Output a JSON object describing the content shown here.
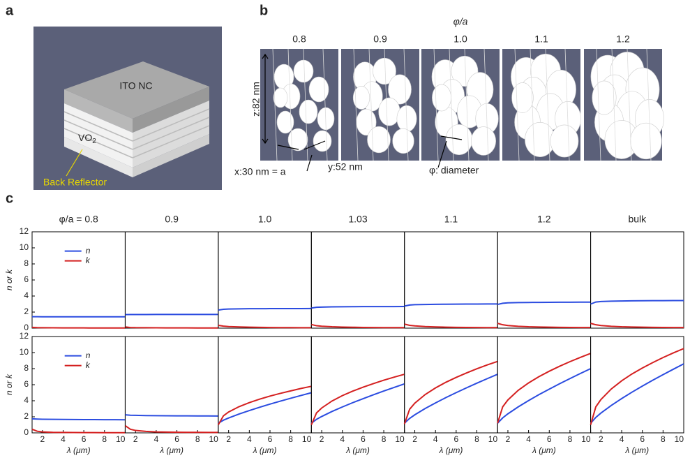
{
  "panel_a": {
    "label": "a",
    "top_layer": "ITO NC",
    "middle_layer": "VO",
    "middle_layer_sub": "2",
    "bottom_layer": "Back Reflector"
  },
  "panel_b": {
    "label": "b",
    "parameter": "φ/a",
    "columns": [
      "0.8",
      "0.9",
      "1.0",
      "1.1",
      "1.2"
    ],
    "z_size": "z:82 nm",
    "x_size": "x:30 nm = a",
    "y_size": "y:52 nm",
    "diameter": "φ: diameter"
  },
  "panel_c": {
    "label": "c"
  },
  "chart_data": [
    {
      "type": "line",
      "title": "φ/a = 0.8",
      "ylabel": "n or k",
      "legend": "upper center",
      "x": [
        1,
        1.5,
        2,
        3,
        4,
        5,
        6,
        7,
        8,
        9,
        10
      ],
      "xlim": [
        1,
        10
      ],
      "ylim": [
        0,
        12
      ],
      "yticks": [
        0,
        2,
        4,
        6,
        8,
        10,
        12
      ],
      "series": [
        {
          "name": "n",
          "color": "#2b4ce0",
          "values": [
            1.42,
            1.42,
            1.41,
            1.41,
            1.41,
            1.41,
            1.41,
            1.41,
            1.41,
            1.41,
            1.41
          ]
        },
        {
          "name": "k",
          "color": "#d42020",
          "values": [
            0.1,
            0.06,
            0.05,
            0.04,
            0.03,
            0.03,
            0.03,
            0.02,
            0.02,
            0.02,
            0.02
          ]
        }
      ]
    },
    {
      "type": "line",
      "title": "0.9",
      "x": [
        1,
        1.5,
        2,
        3,
        4,
        5,
        6,
        7,
        8,
        9,
        10
      ],
      "xlim": [
        1,
        10
      ],
      "ylim": [
        0,
        12
      ],
      "series": [
        {
          "color": "#2b4ce0",
          "values": [
            1.68,
            1.7,
            1.7,
            1.7,
            1.71,
            1.71,
            1.71,
            1.71,
            1.71,
            1.71,
            1.71
          ]
        },
        {
          "color": "#d42020",
          "values": [
            0.15,
            0.08,
            0.06,
            0.05,
            0.04,
            0.03,
            0.03,
            0.03,
            0.02,
            0.02,
            0.02
          ]
        }
      ]
    },
    {
      "type": "line",
      "title": "1.0",
      "x": [
        1,
        1.5,
        2,
        3,
        4,
        5,
        6,
        7,
        8,
        9,
        10
      ],
      "xlim": [
        1,
        10
      ],
      "ylim": [
        0,
        12
      ],
      "series": [
        {
          "color": "#2b4ce0",
          "values": [
            2.25,
            2.35,
            2.38,
            2.4,
            2.42,
            2.42,
            2.43,
            2.43,
            2.44,
            2.44,
            2.45
          ]
        },
        {
          "color": "#d42020",
          "values": [
            0.35,
            0.25,
            0.2,
            0.15,
            0.12,
            0.1,
            0.08,
            0.07,
            0.06,
            0.05,
            0.05
          ]
        }
      ]
    },
    {
      "type": "line",
      "title": "1.03",
      "x": [
        1,
        1.5,
        2,
        3,
        4,
        5,
        6,
        7,
        8,
        9,
        10
      ],
      "xlim": [
        1,
        10
      ],
      "ylim": [
        0,
        12
      ],
      "series": [
        {
          "color": "#2b4ce0",
          "values": [
            2.5,
            2.6,
            2.62,
            2.65,
            2.66,
            2.67,
            2.68,
            2.68,
            2.69,
            2.69,
            2.7
          ]
        },
        {
          "color": "#d42020",
          "values": [
            0.45,
            0.3,
            0.24,
            0.17,
            0.13,
            0.11,
            0.09,
            0.08,
            0.07,
            0.06,
            0.06
          ]
        }
      ]
    },
    {
      "type": "line",
      "title": "1.1",
      "x": [
        1,
        1.5,
        2,
        3,
        4,
        5,
        6,
        7,
        8,
        9,
        10
      ],
      "xlim": [
        1,
        10
      ],
      "ylim": [
        0,
        12
      ],
      "series": [
        {
          "color": "#2b4ce0",
          "values": [
            2.75,
            2.88,
            2.92,
            2.95,
            2.97,
            2.98,
            2.99,
            3.0,
            3.0,
            3.01,
            3.01
          ]
        },
        {
          "color": "#d42020",
          "values": [
            0.5,
            0.35,
            0.28,
            0.2,
            0.15,
            0.12,
            0.1,
            0.09,
            0.08,
            0.07,
            0.07
          ]
        }
      ]
    },
    {
      "type": "line",
      "title": "1.2",
      "x": [
        1,
        1.5,
        2,
        3,
        4,
        5,
        6,
        7,
        8,
        9,
        10
      ],
      "xlim": [
        1,
        10
      ],
      "ylim": [
        0,
        12
      ],
      "series": [
        {
          "color": "#2b4ce0",
          "values": [
            2.95,
            3.1,
            3.15,
            3.18,
            3.2,
            3.21,
            3.22,
            3.23,
            3.23,
            3.24,
            3.24
          ]
        },
        {
          "color": "#d42020",
          "values": [
            0.6,
            0.42,
            0.33,
            0.23,
            0.17,
            0.14,
            0.12,
            0.1,
            0.09,
            0.08,
            0.08
          ]
        }
      ]
    },
    {
      "type": "line",
      "title": "bulk",
      "x": [
        1,
        1.5,
        2,
        3,
        4,
        5,
        6,
        7,
        8,
        9,
        10
      ],
      "xlim": [
        1,
        10
      ],
      "ylim": [
        0,
        12
      ],
      "series": [
        {
          "color": "#2b4ce0",
          "values": [
            3.0,
            3.25,
            3.32,
            3.36,
            3.38,
            3.4,
            3.41,
            3.42,
            3.42,
            3.43,
            3.43
          ]
        },
        {
          "color": "#d42020",
          "values": [
            0.6,
            0.42,
            0.33,
            0.23,
            0.17,
            0.14,
            0.12,
            0.1,
            0.09,
            0.08,
            0.08
          ]
        }
      ]
    },
    {
      "type": "line",
      "ylabel": "n or k",
      "xlabel": "λ (μm)",
      "legend": "upper center",
      "x": [
        1,
        1.5,
        2,
        3,
        4,
        5,
        6,
        7,
        8,
        9,
        10
      ],
      "xlim": [
        1,
        10
      ],
      "ylim": [
        0,
        12
      ],
      "yticks": [
        0,
        2,
        4,
        6,
        8,
        10,
        12
      ],
      "xticks": [
        2,
        4,
        6,
        8,
        10
      ],
      "series": [
        {
          "name": "n",
          "color": "#2b4ce0",
          "values": [
            1.75,
            1.72,
            1.7,
            1.68,
            1.67,
            1.66,
            1.65,
            1.65,
            1.64,
            1.64,
            1.63
          ]
        },
        {
          "name": "k",
          "color": "#d42020",
          "values": [
            0.45,
            0.2,
            0.12,
            0.07,
            0.05,
            0.04,
            0.03,
            0.03,
            0.02,
            0.02,
            0.02
          ]
        }
      ]
    },
    {
      "type": "line",
      "xlabel": "λ (μm)",
      "x": [
        1,
        1.5,
        2,
        3,
        4,
        5,
        6,
        7,
        8,
        9,
        10
      ],
      "xlim": [
        1,
        10
      ],
      "ylim": [
        0,
        12
      ],
      "xticks": [
        2,
        4,
        6,
        8,
        10
      ],
      "series": [
        {
          "color": "#2b4ce0",
          "values": [
            2.25,
            2.2,
            2.18,
            2.15,
            2.14,
            2.13,
            2.12,
            2.12,
            2.11,
            2.11,
            2.1
          ]
        },
        {
          "color": "#d42020",
          "values": [
            0.9,
            0.45,
            0.3,
            0.18,
            0.12,
            0.1,
            0.08,
            0.07,
            0.06,
            0.05,
            0.05
          ]
        }
      ]
    },
    {
      "type": "line",
      "xlabel": "λ (μm)",
      "x": [
        1,
        1.5,
        2,
        3,
        4,
        5,
        6,
        7,
        8,
        9,
        10
      ],
      "xlim": [
        1,
        10
      ],
      "ylim": [
        0,
        12
      ],
      "xticks": [
        2,
        4,
        6,
        8,
        10
      ],
      "series": [
        {
          "color": "#2b4ce0",
          "values": [
            1.2,
            1.58,
            1.85,
            2.34,
            2.78,
            3.19,
            3.58,
            3.95,
            4.31,
            4.66,
            5.0
          ]
        },
        {
          "color": "#d42020",
          "values": [
            1.0,
            2.13,
            2.6,
            3.26,
            3.77,
            4.2,
            4.58,
            4.92,
            5.23,
            5.53,
            5.8
          ]
        }
      ]
    },
    {
      "type": "line",
      "xlabel": "λ (μm)",
      "x": [
        1,
        1.5,
        2,
        3,
        4,
        5,
        6,
        7,
        8,
        9,
        10
      ],
      "xlim": [
        1,
        10
      ],
      "ylim": [
        0,
        12
      ],
      "xticks": [
        2,
        4,
        6,
        8,
        10
      ],
      "series": [
        {
          "color": "#2b4ce0",
          "values": [
            1.2,
            1.69,
            2.04,
            2.67,
            3.23,
            3.76,
            4.26,
            4.74,
            5.21,
            5.66,
            6.1
          ]
        },
        {
          "color": "#d42020",
          "values": [
            1.0,
            2.49,
            3.1,
            3.97,
            4.64,
            5.2,
            5.69,
            6.14,
            6.56,
            6.94,
            7.3
          ]
        }
      ]
    },
    {
      "type": "line",
      "xlabel": "λ (μm)",
      "x": [
        1,
        1.5,
        2,
        3,
        4,
        5,
        6,
        7,
        8,
        9,
        10
      ],
      "xlim": [
        1,
        10
      ],
      "ylim": [
        0,
        12
      ],
      "xticks": [
        2,
        4,
        6,
        8,
        10
      ],
      "series": [
        {
          "color": "#2b4ce0",
          "values": [
            1.2,
            1.8,
            2.25,
            3.03,
            3.73,
            4.39,
            5.01,
            5.61,
            6.19,
            6.75,
            7.3
          ]
        },
        {
          "color": "#d42020",
          "values": [
            1.1,
            2.94,
            3.7,
            4.77,
            5.6,
            6.3,
            6.91,
            7.46,
            7.98,
            8.46,
            8.9
          ]
        }
      ]
    },
    {
      "type": "line",
      "xlabel": "λ (μm)",
      "x": [
        1,
        1.5,
        2,
        3,
        4,
        5,
        6,
        7,
        8,
        9,
        10
      ],
      "xlim": [
        1,
        10
      ],
      "ylim": [
        0,
        12
      ],
      "xticks": [
        2,
        4,
        6,
        8,
        10
      ],
      "series": [
        {
          "color": "#2b4ce0",
          "values": [
            1.2,
            1.87,
            2.37,
            3.24,
            4.02,
            4.76,
            5.45,
            6.12,
            6.76,
            7.39,
            8.0
          ]
        },
        {
          "color": "#d42020",
          "values": [
            1.2,
            3.25,
            4.1,
            5.3,
            6.22,
            7.0,
            7.68,
            8.3,
            8.87,
            9.4,
            9.9
          ]
        }
      ]
    },
    {
      "type": "line",
      "xlabel": "λ (μm)",
      "x": [
        1,
        1.5,
        2,
        3,
        4,
        5,
        6,
        7,
        8,
        9,
        10
      ],
      "xlim": [
        1,
        10
      ],
      "ylim": [
        0,
        12
      ],
      "xticks": [
        2,
        4,
        6,
        8,
        10
      ],
      "series": [
        {
          "color": "#2b4ce0",
          "values": [
            1.2,
            1.93,
            2.47,
            3.42,
            4.27,
            5.07,
            5.83,
            6.55,
            7.25,
            7.93,
            8.6
          ]
        },
        {
          "color": "#d42020",
          "values": [
            1.0,
            3.24,
            4.16,
            5.47,
            6.48,
            7.34,
            8.08,
            8.75,
            9.38,
            9.96,
            10.5
          ]
        }
      ]
    }
  ]
}
